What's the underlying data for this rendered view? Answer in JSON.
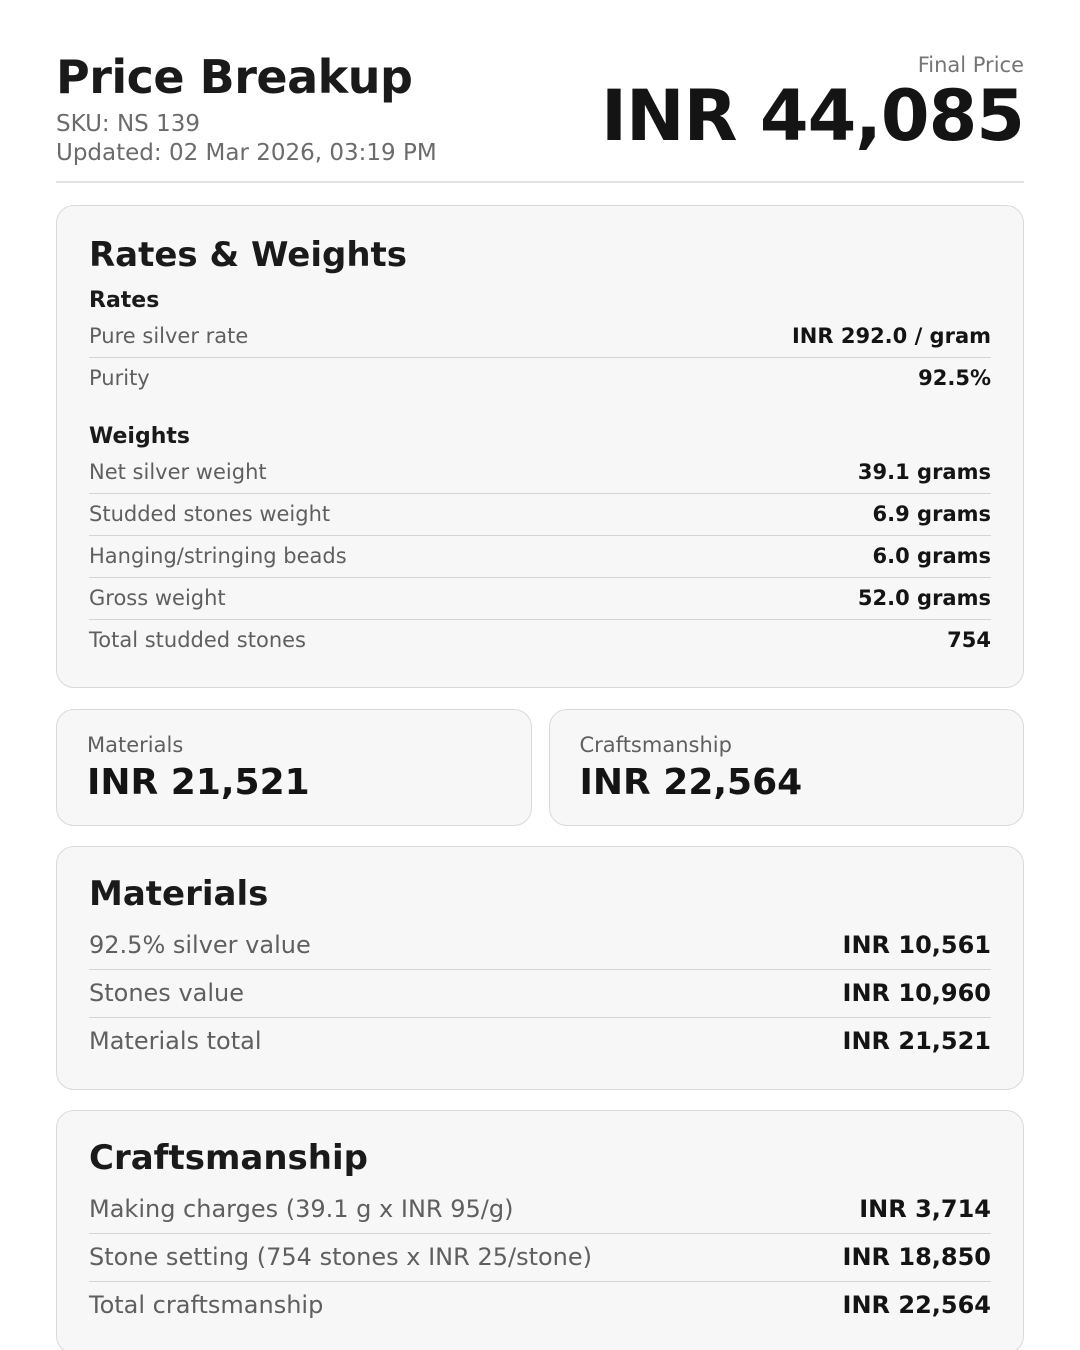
{
  "header": {
    "title": "Price Breakup",
    "sku": "SKU: NS 139",
    "updated": "Updated: 02 Mar 2026, 03:19 PM",
    "final_price_label": "Final Price",
    "final_price": "INR 44,085"
  },
  "rates_weights": {
    "title": "Rates & Weights",
    "rates": {
      "heading": "Rates",
      "rows": [
        {
          "label": "Pure silver rate",
          "value": "INR 292.0 / gram"
        },
        {
          "label": "Purity",
          "value": "92.5%"
        }
      ]
    },
    "weights": {
      "heading": "Weights",
      "rows": [
        {
          "label": "Net silver weight",
          "value": "39.1 grams"
        },
        {
          "label": "Studded stones weight",
          "value": "6.9 grams"
        },
        {
          "label": "Hanging/stringing beads",
          "value": "6.0 grams"
        },
        {
          "label": "Gross weight",
          "value": "52.0 grams"
        },
        {
          "label": "Total studded stones",
          "value": "754"
        }
      ]
    }
  },
  "summary": [
    {
      "label": "Materials",
      "value": "INR 21,521"
    },
    {
      "label": "Craftsmanship",
      "value": "INR 22,564"
    }
  ],
  "materials": {
    "title": "Materials",
    "rows": [
      {
        "label": "92.5% silver value",
        "value": "INR 10,561"
      },
      {
        "label": "Stones value",
        "value": "INR 10,960"
      },
      {
        "label": "Materials total",
        "value": "INR 21,521"
      }
    ]
  },
  "craftsmanship": {
    "title": "Craftsmanship",
    "rows": [
      {
        "label": "Making charges (39.1 g x INR 95/g)",
        "value": "INR 3,714"
      },
      {
        "label": "Stone setting (754 stones x INR 25/stone)",
        "value": "INR 18,850"
      },
      {
        "label": "Total craftsmanship",
        "value": "INR 22,564"
      }
    ]
  },
  "colors": {
    "card_background": "#f7f7f7",
    "card_border": "#d9d9d9",
    "divider": "#d4d4d4",
    "label_text": "#5f5f5f",
    "value_text": "#141414",
    "muted_text": "#757575",
    "title_text": "#1a1a1a"
  }
}
